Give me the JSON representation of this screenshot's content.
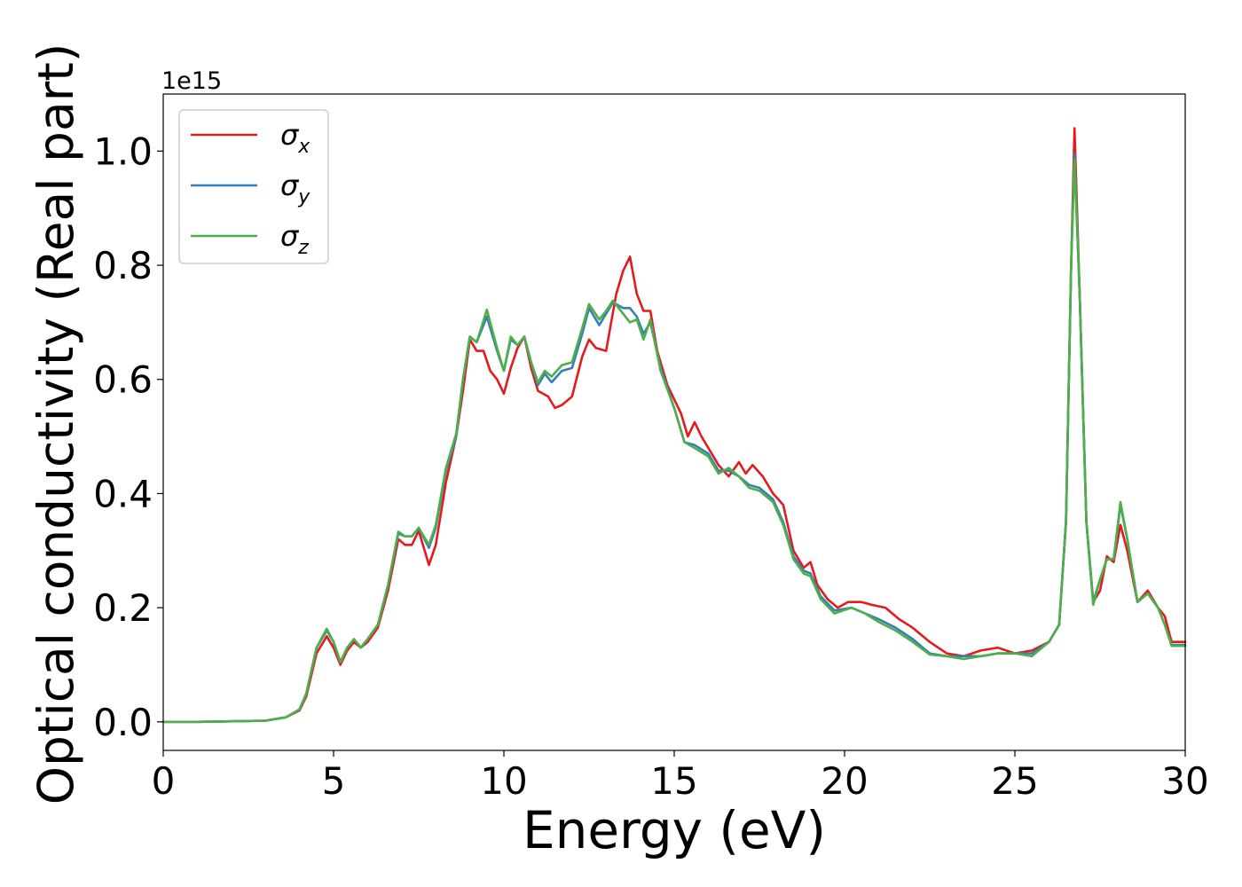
{
  "chart_data": {
    "type": "line",
    "title": "",
    "xlabel": "Energy (eV)",
    "ylabel": "Optical conductivity (Real part)",
    "y_offset_label": "1e15",
    "xlim": [
      0,
      30
    ],
    "ylim": [
      -0.05,
      1.1
    ],
    "x_ticks": [
      0,
      5,
      10,
      15,
      20,
      25,
      30
    ],
    "x_tick_labels": [
      "0",
      "5",
      "10",
      "15",
      "20",
      "25",
      "30"
    ],
    "y_ticks": [
      0.0,
      0.2,
      0.4,
      0.6,
      0.8,
      1.0
    ],
    "y_tick_labels": [
      "0.0",
      "0.2",
      "0.4",
      "0.6",
      "0.8",
      "1.0"
    ],
    "grid": false,
    "legend_position": "top-left",
    "series": [
      {
        "name": "σx",
        "legend_base": "σ",
        "legend_sub": "x",
        "color": "#e41a1c",
        "points": [
          [
            0,
            0
          ],
          [
            1,
            0
          ],
          [
            2,
            0.001
          ],
          [
            3,
            0.002
          ],
          [
            3.6,
            0.008
          ],
          [
            4,
            0.02
          ],
          [
            4.2,
            0.045
          ],
          [
            4.5,
            0.12
          ],
          [
            4.8,
            0.15
          ],
          [
            5,
            0.13
          ],
          [
            5.2,
            0.1
          ],
          [
            5.4,
            0.125
          ],
          [
            5.6,
            0.14
          ],
          [
            5.8,
            0.13
          ],
          [
            6,
            0.14
          ],
          [
            6.3,
            0.165
          ],
          [
            6.6,
            0.23
          ],
          [
            6.9,
            0.32
          ],
          [
            7.1,
            0.31
          ],
          [
            7.3,
            0.31
          ],
          [
            7.5,
            0.335
          ],
          [
            7.8,
            0.275
          ],
          [
            8,
            0.31
          ],
          [
            8.3,
            0.42
          ],
          [
            8.6,
            0.5
          ],
          [
            8.8,
            0.58
          ],
          [
            9,
            0.67
          ],
          [
            9.2,
            0.65
          ],
          [
            9.4,
            0.65
          ],
          [
            9.6,
            0.615
          ],
          [
            9.8,
            0.6
          ],
          [
            10,
            0.575
          ],
          [
            10.2,
            0.62
          ],
          [
            10.4,
            0.655
          ],
          [
            10.6,
            0.675
          ],
          [
            10.8,
            0.62
          ],
          [
            11,
            0.58
          ],
          [
            11.3,
            0.57
          ],
          [
            11.5,
            0.55
          ],
          [
            11.7,
            0.555
          ],
          [
            12,
            0.57
          ],
          [
            12.3,
            0.64
          ],
          [
            12.5,
            0.67
          ],
          [
            12.7,
            0.655
          ],
          [
            13,
            0.65
          ],
          [
            13.3,
            0.75
          ],
          [
            13.5,
            0.79
          ],
          [
            13.7,
            0.815
          ],
          [
            13.9,
            0.75
          ],
          [
            14.1,
            0.72
          ],
          [
            14.3,
            0.72
          ],
          [
            14.5,
            0.65
          ],
          [
            14.8,
            0.59
          ],
          [
            15.2,
            0.54
          ],
          [
            15.4,
            0.5
          ],
          [
            15.6,
            0.525
          ],
          [
            15.8,
            0.5
          ],
          [
            16,
            0.48
          ],
          [
            16.3,
            0.45
          ],
          [
            16.6,
            0.43
          ],
          [
            16.9,
            0.455
          ],
          [
            17.1,
            0.435
          ],
          [
            17.3,
            0.45
          ],
          [
            17.6,
            0.43
          ],
          [
            17.9,
            0.4
          ],
          [
            18.2,
            0.38
          ],
          [
            18.5,
            0.3
          ],
          [
            18.8,
            0.27
          ],
          [
            19,
            0.28
          ],
          [
            19.2,
            0.24
          ],
          [
            19.5,
            0.215
          ],
          [
            19.8,
            0.2
          ],
          [
            20.1,
            0.21
          ],
          [
            20.5,
            0.21
          ],
          [
            20.8,
            0.205
          ],
          [
            21.2,
            0.2
          ],
          [
            21.6,
            0.18
          ],
          [
            22,
            0.165
          ],
          [
            22.5,
            0.14
          ],
          [
            23,
            0.12
          ],
          [
            23.5,
            0.115
          ],
          [
            24,
            0.125
          ],
          [
            24.5,
            0.13
          ],
          [
            25,
            0.12
          ],
          [
            25.5,
            0.125
          ],
          [
            26,
            0.14
          ],
          [
            26.3,
            0.17
          ],
          [
            26.5,
            0.35
          ],
          [
            26.65,
            0.8
          ],
          [
            26.75,
            1.04
          ],
          [
            26.9,
            0.75
          ],
          [
            27.1,
            0.35
          ],
          [
            27.3,
            0.21
          ],
          [
            27.5,
            0.23
          ],
          [
            27.7,
            0.29
          ],
          [
            27.9,
            0.28
          ],
          [
            28.1,
            0.345
          ],
          [
            28.3,
            0.3
          ],
          [
            28.6,
            0.21
          ],
          [
            28.9,
            0.23
          ],
          [
            29.2,
            0.2
          ],
          [
            29.4,
            0.185
          ],
          [
            29.6,
            0.14
          ],
          [
            30,
            0.14
          ]
        ]
      },
      {
        "name": "σy",
        "legend_base": "σ",
        "legend_sub": "y",
        "color": "#377eb8",
        "points": [
          [
            0,
            0
          ],
          [
            1,
            0
          ],
          [
            2,
            0.001
          ],
          [
            3,
            0.002
          ],
          [
            3.6,
            0.008
          ],
          [
            4,
            0.022
          ],
          [
            4.2,
            0.05
          ],
          [
            4.5,
            0.13
          ],
          [
            4.8,
            0.16
          ],
          [
            5,
            0.14
          ],
          [
            5.2,
            0.105
          ],
          [
            5.4,
            0.13
          ],
          [
            5.6,
            0.145
          ],
          [
            5.8,
            0.13
          ],
          [
            6,
            0.145
          ],
          [
            6.3,
            0.17
          ],
          [
            6.6,
            0.24
          ],
          [
            6.9,
            0.33
          ],
          [
            7.1,
            0.325
          ],
          [
            7.3,
            0.325
          ],
          [
            7.5,
            0.34
          ],
          [
            7.8,
            0.305
          ],
          [
            8,
            0.34
          ],
          [
            8.3,
            0.44
          ],
          [
            8.6,
            0.5
          ],
          [
            8.8,
            0.6
          ],
          [
            9,
            0.675
          ],
          [
            9.2,
            0.665
          ],
          [
            9.5,
            0.71
          ],
          [
            9.8,
            0.65
          ],
          [
            10,
            0.615
          ],
          [
            10.2,
            0.67
          ],
          [
            10.4,
            0.66
          ],
          [
            10.6,
            0.675
          ],
          [
            10.8,
            0.63
          ],
          [
            11,
            0.59
          ],
          [
            11.2,
            0.61
          ],
          [
            11.4,
            0.595
          ],
          [
            11.7,
            0.615
          ],
          [
            12,
            0.62
          ],
          [
            12.3,
            0.68
          ],
          [
            12.5,
            0.725
          ],
          [
            12.8,
            0.695
          ],
          [
            13,
            0.715
          ],
          [
            13.2,
            0.735
          ],
          [
            13.5,
            0.725
          ],
          [
            13.7,
            0.725
          ],
          [
            13.9,
            0.71
          ],
          [
            14.1,
            0.68
          ],
          [
            14.3,
            0.7
          ],
          [
            14.6,
            0.62
          ],
          [
            15,
            0.55
          ],
          [
            15.3,
            0.49
          ],
          [
            15.6,
            0.485
          ],
          [
            16,
            0.47
          ],
          [
            16.3,
            0.44
          ],
          [
            16.6,
            0.44
          ],
          [
            16.9,
            0.43
          ],
          [
            17.2,
            0.415
          ],
          [
            17.5,
            0.41
          ],
          [
            17.9,
            0.39
          ],
          [
            18.2,
            0.35
          ],
          [
            18.5,
            0.29
          ],
          [
            18.8,
            0.265
          ],
          [
            19,
            0.26
          ],
          [
            19.3,
            0.22
          ],
          [
            19.7,
            0.195
          ],
          [
            20.2,
            0.2
          ],
          [
            20.6,
            0.19
          ],
          [
            21,
            0.18
          ],
          [
            21.5,
            0.165
          ],
          [
            22,
            0.145
          ],
          [
            22.5,
            0.12
          ],
          [
            23,
            0.115
          ],
          [
            23.5,
            0.115
          ],
          [
            24,
            0.115
          ],
          [
            24.5,
            0.12
          ],
          [
            25,
            0.12
          ],
          [
            25.5,
            0.12
          ],
          [
            26,
            0.14
          ],
          [
            26.3,
            0.17
          ],
          [
            26.5,
            0.35
          ],
          [
            26.65,
            0.8
          ],
          [
            26.75,
            0.995
          ],
          [
            26.9,
            0.75
          ],
          [
            27.1,
            0.35
          ],
          [
            27.3,
            0.21
          ],
          [
            27.5,
            0.25
          ],
          [
            27.7,
            0.285
          ],
          [
            27.9,
            0.285
          ],
          [
            28.1,
            0.38
          ],
          [
            28.3,
            0.32
          ],
          [
            28.6,
            0.21
          ],
          [
            28.9,
            0.225
          ],
          [
            29.2,
            0.2
          ],
          [
            29.4,
            0.17
          ],
          [
            29.6,
            0.135
          ],
          [
            30,
            0.135
          ]
        ]
      },
      {
        "name": "σz",
        "legend_base": "σ",
        "legend_sub": "z",
        "color": "#4daf4a",
        "points": [
          [
            0,
            0
          ],
          [
            1,
            0
          ],
          [
            2,
            0.001
          ],
          [
            3,
            0.002
          ],
          [
            3.6,
            0.008
          ],
          [
            4,
            0.022
          ],
          [
            4.2,
            0.05
          ],
          [
            4.5,
            0.13
          ],
          [
            4.8,
            0.163
          ],
          [
            5,
            0.14
          ],
          [
            5.2,
            0.105
          ],
          [
            5.4,
            0.13
          ],
          [
            5.6,
            0.145
          ],
          [
            5.8,
            0.13
          ],
          [
            6,
            0.145
          ],
          [
            6.3,
            0.17
          ],
          [
            6.6,
            0.24
          ],
          [
            6.9,
            0.333
          ],
          [
            7.1,
            0.325
          ],
          [
            7.3,
            0.325
          ],
          [
            7.5,
            0.34
          ],
          [
            7.8,
            0.31
          ],
          [
            8,
            0.345
          ],
          [
            8.3,
            0.445
          ],
          [
            8.6,
            0.505
          ],
          [
            8.8,
            0.6
          ],
          [
            9,
            0.675
          ],
          [
            9.2,
            0.665
          ],
          [
            9.5,
            0.722
          ],
          [
            9.8,
            0.655
          ],
          [
            10,
            0.615
          ],
          [
            10.2,
            0.675
          ],
          [
            10.4,
            0.66
          ],
          [
            10.6,
            0.675
          ],
          [
            10.8,
            0.63
          ],
          [
            11,
            0.595
          ],
          [
            11.2,
            0.615
          ],
          [
            11.4,
            0.605
          ],
          [
            11.7,
            0.625
          ],
          [
            12,
            0.63
          ],
          [
            12.3,
            0.69
          ],
          [
            12.5,
            0.732
          ],
          [
            12.8,
            0.705
          ],
          [
            13,
            0.72
          ],
          [
            13.2,
            0.738
          ],
          [
            13.5,
            0.715
          ],
          [
            13.7,
            0.7
          ],
          [
            13.9,
            0.705
          ],
          [
            14.1,
            0.67
          ],
          [
            14.3,
            0.705
          ],
          [
            14.6,
            0.615
          ],
          [
            15,
            0.55
          ],
          [
            15.3,
            0.49
          ],
          [
            15.6,
            0.48
          ],
          [
            16,
            0.465
          ],
          [
            16.3,
            0.435
          ],
          [
            16.6,
            0.445
          ],
          [
            16.9,
            0.43
          ],
          [
            17.2,
            0.41
          ],
          [
            17.5,
            0.405
          ],
          [
            17.9,
            0.385
          ],
          [
            18.2,
            0.345
          ],
          [
            18.5,
            0.285
          ],
          [
            18.8,
            0.26
          ],
          [
            19,
            0.255
          ],
          [
            19.3,
            0.215
          ],
          [
            19.7,
            0.19
          ],
          [
            20.2,
            0.2
          ],
          [
            20.6,
            0.19
          ],
          [
            21,
            0.175
          ],
          [
            21.5,
            0.16
          ],
          [
            22,
            0.14
          ],
          [
            22.5,
            0.118
          ],
          [
            23,
            0.115
          ],
          [
            23.5,
            0.11
          ],
          [
            24,
            0.115
          ],
          [
            24.5,
            0.12
          ],
          [
            25,
            0.12
          ],
          [
            25.5,
            0.115
          ],
          [
            26,
            0.14
          ],
          [
            26.3,
            0.17
          ],
          [
            26.5,
            0.35
          ],
          [
            26.65,
            0.8
          ],
          [
            26.75,
            0.985
          ],
          [
            26.9,
            0.75
          ],
          [
            27.1,
            0.35
          ],
          [
            27.3,
            0.205
          ],
          [
            27.5,
            0.25
          ],
          [
            27.7,
            0.285
          ],
          [
            27.9,
            0.285
          ],
          [
            28.1,
            0.385
          ],
          [
            28.3,
            0.32
          ],
          [
            28.6,
            0.21
          ],
          [
            28.9,
            0.225
          ],
          [
            29.2,
            0.2
          ],
          [
            29.4,
            0.17
          ],
          [
            29.6,
            0.133
          ],
          [
            30,
            0.133
          ]
        ]
      }
    ]
  }
}
